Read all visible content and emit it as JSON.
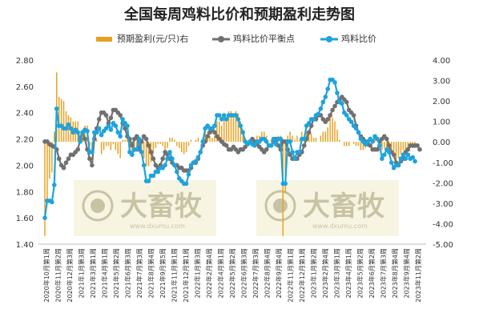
{
  "chart_data": {
    "type": "bar+line",
    "title": "全国每周鸡料比价和预期盈利走势图",
    "legend": {
      "placement": "top",
      "items": [
        {
          "key": "profit",
          "label": "预期盈利(元/只)右",
          "color": "#e8a020",
          "kind": "bar"
        },
        {
          "key": "breakeven",
          "label": "鸡料比价平衡点",
          "color": "#707070",
          "kind": "line-marker"
        },
        {
          "key": "ratio",
          "label": "鸡料比价",
          "color": "#1ea3dc",
          "kind": "line-marker"
        }
      ]
    },
    "y_left": {
      "min": 1.4,
      "max": 2.8,
      "ticks": [
        "1.40",
        "1.60",
        "1.80",
        "2.00",
        "2.20",
        "2.40",
        "2.60",
        "2.80"
      ]
    },
    "y_right": {
      "min": -5,
      "max": 4,
      "ticks": [
        "-5.00",
        "-4.00",
        "-3.00",
        "-2.00",
        "-1.00",
        "0.00",
        "1.00",
        "2.00",
        "3.00",
        "4.00"
      ]
    },
    "x_labels": [
      "2020年10月第1周",
      "2020年11月第2周",
      "2020年12月第3周",
      "2021年1月第3周",
      "2021年3月第1周",
      "2021年4月第1周",
      "2021年5月第2周",
      "2021年6月第3周",
      "2021年7月第3周",
      "2021年8月第4周",
      "2021年9月第5周",
      "2021年11月第1周",
      "2021年12月第1周",
      "2022年1月第3周",
      "2022年2月第4周",
      "2022年4月第1周",
      "2022年5月第2周",
      "2022年6月第3周",
      "2022年7月第3周",
      "2022年8月第4周",
      "2022年9月第4周",
      "2022年11月第1周",
      "2022年12月第1周",
      "2023年1月第2周",
      "2023年2月第4周",
      "2023年3月第1周",
      "2023年4月第1周",
      "2023年5月第2周",
      "2023年6月第2周",
      "2023年7月第3周",
      "2023年8月第4周",
      "2023年9月第4周",
      "2023年11月第2周"
    ],
    "n_points": 160,
    "ratio": [
      1.6,
      1.73,
      1.73,
      1.72,
      1.85,
      2.43,
      2.3,
      2.3,
      2.28,
      2.28,
      2.31,
      2.28,
      2.25,
      2.27,
      2.25,
      2.18,
      2.25,
      2.27,
      2.26,
      2.1,
      2.1,
      2.25,
      2.25,
      2.28,
      2.23,
      2.26,
      2.28,
      2.3,
      2.27,
      2.32,
      2.3,
      2.25,
      2.22,
      2.35,
      2.32,
      2.3,
      2.1,
      2.08,
      2.12,
      2.12,
      2.2,
      2.1,
      2.0,
      1.88,
      1.88,
      1.92,
      1.92,
      1.95,
      1.95,
      1.98,
      1.98,
      2.0,
      2.05,
      2.1,
      2.05,
      2.0,
      1.95,
      1.9,
      1.88,
      1.86,
      1.86,
      1.93,
      2.0,
      2.02,
      2.03,
      2.06,
      2.1,
      2.18,
      2.28,
      2.3,
      2.28,
      2.28,
      2.3,
      2.38,
      2.38,
      2.35,
      2.38,
      2.35,
      2.38,
      2.38,
      2.38,
      2.38,
      2.35,
      2.3,
      2.25,
      2.18,
      2.16,
      2.18,
      2.16,
      2.15,
      2.18,
      2.18,
      2.2,
      2.2,
      2.18,
      2.15,
      2.15,
      2.2,
      2.16,
      2.2,
      2.2,
      1.86,
      1.86,
      2.18,
      2.18,
      2.1,
      2.05,
      2.1,
      2.1,
      2.2,
      2.2,
      2.3,
      2.32,
      2.35,
      2.35,
      2.38,
      2.39,
      2.43,
      2.48,
      2.52,
      2.58,
      2.65,
      2.65,
      2.63,
      2.55,
      2.48,
      2.47,
      2.4,
      2.38,
      2.35,
      2.33,
      2.3,
      2.28,
      2.25,
      2.2,
      2.18,
      2.16,
      2.18,
      2.2,
      2.18,
      2.22,
      2.2,
      2.15,
      2.05,
      2.08,
      2.12,
      2.1,
      2.02,
      1.98,
      2.0,
      2.0,
      2.05,
      2.08,
      2.05,
      2.08,
      2.05,
      2.06,
      2.03
    ],
    "breakeven": [
      2.18,
      2.18,
      2.16,
      2.15,
      2.14,
      2.12,
      2.05,
      2.0,
      1.98,
      2.02,
      2.05,
      2.08,
      2.08,
      2.1,
      2.12,
      2.2,
      2.25,
      2.2,
      2.12,
      2.05,
      2.0,
      2.2,
      2.28,
      2.35,
      2.4,
      2.4,
      2.38,
      2.32,
      2.36,
      2.42,
      2.42,
      2.4,
      2.38,
      2.32,
      2.28,
      2.22,
      2.2,
      2.15,
      2.2,
      2.22,
      2.12,
      2.18,
      2.22,
      2.2,
      2.15,
      2.1,
      2.05,
      2.0,
      1.98,
      2.0,
      2.05,
      2.1,
      2.08,
      2.05,
      2.02,
      2.0,
      2.0,
      1.98,
      1.98,
      1.96,
      1.96,
      1.96,
      1.98,
      2.02,
      2.02,
      2.05,
      2.1,
      2.15,
      2.18,
      2.22,
      2.25,
      2.27,
      2.25,
      2.22,
      2.2,
      2.18,
      2.16,
      2.15,
      2.12,
      2.12,
      2.14,
      2.12,
      2.1,
      2.12,
      2.12,
      2.14,
      2.16,
      2.18,
      2.2,
      2.18,
      2.16,
      2.14,
      2.12,
      2.1,
      2.12,
      2.15,
      2.15,
      2.18,
      2.2,
      2.15,
      2.12,
      2.18,
      2.18,
      2.12,
      2.08,
      2.05,
      2.05,
      2.05,
      2.08,
      2.1,
      2.15,
      2.2,
      2.25,
      2.3,
      2.35,
      2.35,
      2.38,
      2.38,
      2.35,
      2.33,
      2.35,
      2.38,
      2.42,
      2.45,
      2.48,
      2.5,
      2.52,
      2.5,
      2.48,
      2.42,
      2.4,
      2.38,
      2.3,
      2.25,
      2.22,
      2.2,
      2.18,
      2.16,
      2.15,
      2.12,
      2.12,
      2.12,
      2.18,
      2.2,
      2.22,
      2.2,
      2.15,
      2.1,
      2.08,
      2.02,
      2.0,
      2.03,
      2.05,
      2.1,
      2.12,
      2.15,
      2.15,
      2.15,
      2.15,
      2.12
    ],
    "profit": [
      -4.6,
      -2.8,
      -1.8,
      -1.5,
      0.5,
      3.4,
      2.2,
      2.1,
      2.0,
      1.5,
      1.3,
      1.2,
      1.0,
      1.0,
      1.0,
      0.4,
      0.6,
      0.8,
      0.8,
      -0.2,
      -0.4,
      0.2,
      0.1,
      0.0,
      -0.6,
      -0.4,
      -0.2,
      -0.2,
      -0.4,
      -0.1,
      -0.4,
      -0.6,
      -0.8,
      0.1,
      0.1,
      0.2,
      -0.5,
      -0.6,
      -0.5,
      -0.3,
      0.2,
      -0.4,
      -0.8,
      -1.2,
      -1.2,
      -1.0,
      -0.6,
      -0.3,
      -0.1,
      -0.1,
      -0.2,
      -0.4,
      -0.3,
      0.2,
      0.2,
      0.1,
      -0.2,
      -0.3,
      -0.5,
      -0.6,
      -0.5,
      -0.2,
      0.1,
      0.0,
      0.1,
      0.2,
      0.0,
      0.2,
      0.6,
      0.5,
      0.3,
      0.2,
      0.3,
      1.0,
      1.0,
      0.8,
      1.2,
      1.1,
      1.5,
      1.5,
      1.4,
      1.5,
      1.4,
      1.0,
      0.6,
      0.2,
      0.0,
      0.0,
      0.0,
      0.1,
      0.3,
      0.3,
      0.5,
      0.5,
      0.3,
      0.0,
      0.1,
      0.1,
      0.0,
      0.3,
      0.3,
      -4.6,
      -2.5,
      0.3,
      0.5,
      0.3,
      0.1,
      0.3,
      0.1,
      0.5,
      0.3,
      0.5,
      0.4,
      0.4,
      0.2,
      0.2,
      0.0,
      0.3,
      0.5,
      0.5,
      0.7,
      1.3,
      1.2,
      1.0,
      0.6,
      0.1,
      0.0,
      -0.2,
      -0.2,
      -0.2,
      0.0,
      -0.1,
      -0.2,
      -0.2,
      -0.4,
      -0.4,
      -0.3,
      -0.1,
      0.0,
      0.0,
      0.2,
      0.1,
      -0.1,
      -0.4,
      -0.3,
      -0.3,
      -0.5,
      -0.6,
      -0.8,
      -1.0,
      -0.8,
      -0.6,
      -0.4,
      -0.4,
      -0.3,
      -0.3,
      -0.3,
      -0.3
    ],
    "watermarks": [
      {
        "text": "大畜牧",
        "url": "www.dxumu.com"
      },
      {
        "text": "大畜牧",
        "url": "www.dxumu.com"
      }
    ]
  }
}
